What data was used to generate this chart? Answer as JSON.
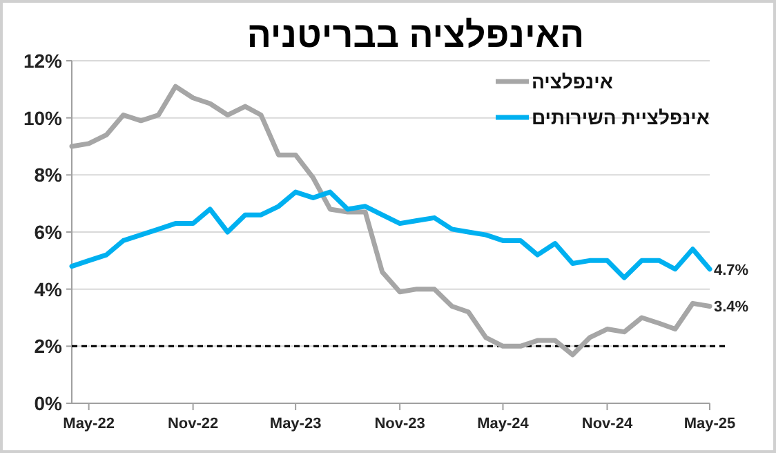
{
  "chart_data": {
    "type": "line",
    "title": "האינפלציה בבריטניה",
    "x": [
      "2022-04",
      "2022-05",
      "2022-06",
      "2022-07",
      "2022-08",
      "2022-09",
      "2022-10",
      "2022-11",
      "2022-12",
      "2023-01",
      "2023-02",
      "2023-03",
      "2023-04",
      "2023-05",
      "2023-06",
      "2023-07",
      "2023-08",
      "2023-09",
      "2023-10",
      "2023-11",
      "2023-12",
      "2024-01",
      "2024-02",
      "2024-03",
      "2024-04",
      "2024-05",
      "2024-06",
      "2024-07",
      "2024-08",
      "2024-09",
      "2024-10",
      "2024-11",
      "2024-12",
      "2025-01",
      "2025-02",
      "2025-03",
      "2025-04",
      "2025-05"
    ],
    "series": [
      {
        "name": "אינפלציה",
        "color": "#a6a6a6",
        "values": [
          9.0,
          9.1,
          9.4,
          10.1,
          9.9,
          10.1,
          11.1,
          10.7,
          10.5,
          10.1,
          10.4,
          10.1,
          8.7,
          8.7,
          7.9,
          6.8,
          6.7,
          6.7,
          4.6,
          3.9,
          4.0,
          4.0,
          3.4,
          3.2,
          2.3,
          2.0,
          2.0,
          2.2,
          2.2,
          1.7,
          2.3,
          2.6,
          2.5,
          3.0,
          2.8,
          2.6,
          3.5,
          3.4
        ],
        "value_labels": [
          null,
          null,
          null,
          null,
          null,
          null,
          null,
          null,
          null,
          null,
          null,
          null,
          null,
          null,
          null,
          null,
          null,
          null,
          null,
          null,
          null,
          null,
          null,
          null,
          null,
          null,
          null,
          null,
          null,
          null,
          null,
          null,
          null,
          null,
          null,
          null,
          null,
          "3.4%"
        ]
      },
      {
        "name": "אינפלציית השירותים",
        "color": "#00b0f0",
        "values": [
          4.8,
          5.0,
          5.2,
          5.7,
          5.9,
          6.1,
          6.3,
          6.3,
          6.8,
          6.0,
          6.6,
          6.6,
          6.9,
          7.4,
          7.2,
          7.4,
          6.8,
          6.9,
          6.6,
          6.3,
          6.4,
          6.5,
          6.1,
          6.0,
          5.9,
          5.7,
          5.7,
          5.2,
          5.6,
          4.9,
          5.0,
          5.0,
          4.4,
          5.0,
          5.0,
          4.7,
          5.4,
          4.7
        ],
        "value_labels": [
          null,
          null,
          null,
          null,
          null,
          null,
          null,
          null,
          null,
          null,
          null,
          null,
          null,
          null,
          null,
          null,
          null,
          null,
          null,
          null,
          null,
          null,
          null,
          null,
          null,
          null,
          null,
          null,
          null,
          null,
          null,
          null,
          null,
          null,
          null,
          null,
          null,
          "4.7%"
        ]
      }
    ],
    "xlim": [
      "2022-04",
      "2025-05"
    ],
    "xticks": [
      {
        "value": "2022-05",
        "label": "May-22"
      },
      {
        "value": "2022-11",
        "label": "Nov-22"
      },
      {
        "value": "2023-05",
        "label": "May-23"
      },
      {
        "value": "2023-11",
        "label": "Nov-23"
      },
      {
        "value": "2024-05",
        "label": "May-24"
      },
      {
        "value": "2024-11",
        "label": "Nov-24"
      },
      {
        "value": "2025-05",
        "label": "May-25"
      }
    ],
    "ylim": [
      0,
      12
    ],
    "yticks": [
      {
        "value": 0,
        "label": "0%"
      },
      {
        "value": 2,
        "label": "2%"
      },
      {
        "value": 4,
        "label": "4%"
      },
      {
        "value": 6,
        "label": "6%"
      },
      {
        "value": 8,
        "label": "8%"
      },
      {
        "value": 10,
        "label": "10%"
      },
      {
        "value": 12,
        "label": "12%"
      }
    ],
    "ref_lines": [
      {
        "axis": "y",
        "value": 2,
        "color": "#000000",
        "line_style": "dashed"
      }
    ],
    "grid": "y",
    "legend": "top right",
    "marker": "none",
    "line_style": "solid"
  }
}
